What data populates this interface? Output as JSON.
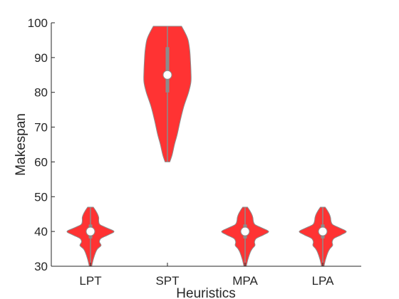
{
  "chart_data": {
    "type": "violin",
    "title": "",
    "xlabel": "Heuristics",
    "ylabel": "Makespan",
    "ylim": [
      30,
      100
    ],
    "yticks": [
      30,
      40,
      50,
      60,
      70,
      80,
      90,
      100
    ],
    "grid": false,
    "color": "#ff3333",
    "categories": [
      "LPT",
      "SPT",
      "MPA",
      "LPA"
    ],
    "series": [
      {
        "category": "LPT",
        "median": 40,
        "q1": 38,
        "q3": 42,
        "min": 30,
        "max": 47,
        "density": [
          [
            30,
            0.05
          ],
          [
            32,
            0.12
          ],
          [
            34,
            0.22
          ],
          [
            35,
            0.3
          ],
          [
            36,
            0.45
          ],
          [
            37,
            0.38
          ],
          [
            38,
            0.45
          ],
          [
            39,
            0.75
          ],
          [
            40,
            1.0
          ],
          [
            41,
            0.7
          ],
          [
            42,
            0.4
          ],
          [
            43,
            0.35
          ],
          [
            44,
            0.35
          ],
          [
            45,
            0.3
          ],
          [
            46,
            0.22
          ],
          [
            47,
            0.12
          ]
        ]
      },
      {
        "category": "SPT",
        "median": 85,
        "q1": 80,
        "q3": 93,
        "min": 60,
        "max": 99,
        "density": [
          [
            60,
            0.1
          ],
          [
            62,
            0.2
          ],
          [
            65,
            0.3
          ],
          [
            68,
            0.42
          ],
          [
            72,
            0.55
          ],
          [
            76,
            0.7
          ],
          [
            80,
            0.9
          ],
          [
            83,
            1.0
          ],
          [
            86,
            1.0
          ],
          [
            89,
            0.98
          ],
          [
            92,
            0.95
          ],
          [
            95,
            0.88
          ],
          [
            97,
            0.76
          ],
          [
            99,
            0.6
          ]
        ]
      },
      {
        "category": "MPA",
        "median": 40,
        "q1": 38,
        "q3": 42,
        "min": 30,
        "max": 47,
        "density": [
          [
            30,
            0.05
          ],
          [
            32,
            0.12
          ],
          [
            34,
            0.22
          ],
          [
            35,
            0.3
          ],
          [
            36,
            0.42
          ],
          [
            37,
            0.4
          ],
          [
            38,
            0.48
          ],
          [
            39,
            0.78
          ],
          [
            40,
            1.0
          ],
          [
            41,
            0.72
          ],
          [
            42,
            0.42
          ],
          [
            43,
            0.35
          ],
          [
            44,
            0.33
          ],
          [
            45,
            0.28
          ],
          [
            46,
            0.2
          ],
          [
            47,
            0.1
          ]
        ]
      },
      {
        "category": "LPA",
        "median": 40,
        "q1": 38,
        "q3": 42,
        "min": 30,
        "max": 47,
        "density": [
          [
            30,
            0.05
          ],
          [
            32,
            0.12
          ],
          [
            34,
            0.22
          ],
          [
            35,
            0.3
          ],
          [
            36,
            0.42
          ],
          [
            37,
            0.4
          ],
          [
            38,
            0.48
          ],
          [
            39,
            0.78
          ],
          [
            40,
            1.0
          ],
          [
            41,
            0.72
          ],
          [
            42,
            0.42
          ],
          [
            43,
            0.35
          ],
          [
            44,
            0.33
          ],
          [
            45,
            0.28
          ],
          [
            46,
            0.2
          ],
          [
            47,
            0.1
          ]
        ]
      }
    ]
  }
}
